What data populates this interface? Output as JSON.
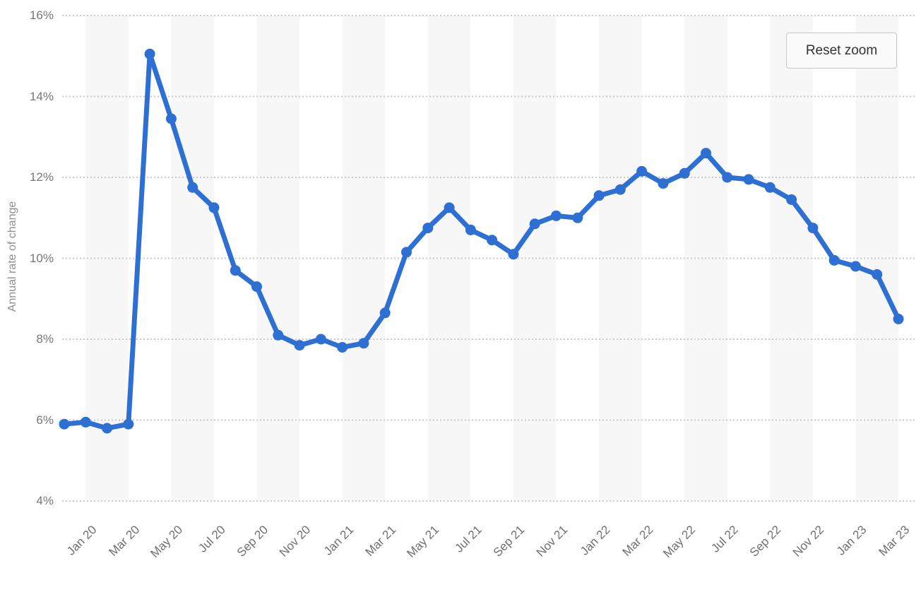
{
  "toolbar": {
    "reset_zoom_label": "Reset zoom"
  },
  "chart_data": {
    "type": "line",
    "title": "",
    "xlabel": "",
    "ylabel": "Annual rate of change",
    "ylim": [
      4,
      16
    ],
    "ytick_labels": [
      "16%",
      "14%",
      "12%",
      "10%",
      "8%",
      "6%",
      "4%"
    ],
    "ytick_values": [
      16,
      14,
      12,
      10,
      8,
      6,
      4
    ],
    "grid": "dotted-horizontal",
    "legend_position": "none",
    "series_color": "#2d6fd3",
    "plot_band_color": "#f7f7f7",
    "x_label_first_index": 1,
    "x_label_step": 2,
    "categories": [
      "Dec 19",
      "Jan 20",
      "Feb 20",
      "Mar 20",
      "Apr 20",
      "May 20",
      "Jun 20",
      "Jul 20",
      "Aug 20",
      "Sep 20",
      "Oct 20",
      "Nov 20",
      "Dec 20",
      "Jan 21",
      "Feb 21",
      "Mar 21",
      "Apr 21",
      "May 21",
      "Jun 21",
      "Jul 21",
      "Aug 21",
      "Sep 21",
      "Oct 21",
      "Nov 21",
      "Dec 21",
      "Jan 22",
      "Feb 22",
      "Mar 22",
      "Apr 22",
      "May 22",
      "Jun 22",
      "Jul 22",
      "Aug 22",
      "Sep 22",
      "Oct 22",
      "Nov 22",
      "Dec 22",
      "Jan 23",
      "Feb 23",
      "Mar 23"
    ],
    "series": [
      {
        "name": "Annual rate of change",
        "values": [
          5.9,
          5.95,
          5.8,
          5.9,
          15.05,
          13.45,
          11.75,
          11.25,
          9.7,
          9.3,
          8.1,
          7.85,
          8.0,
          7.8,
          7.9,
          8.65,
          10.15,
          10.75,
          11.25,
          10.7,
          10.45,
          10.1,
          10.85,
          11.05,
          11.0,
          11.55,
          11.7,
          12.15,
          11.85,
          12.1,
          12.6,
          12.0,
          11.95,
          11.75,
          11.45,
          10.75,
          9.95,
          9.8,
          9.6,
          8.5
        ]
      }
    ]
  }
}
